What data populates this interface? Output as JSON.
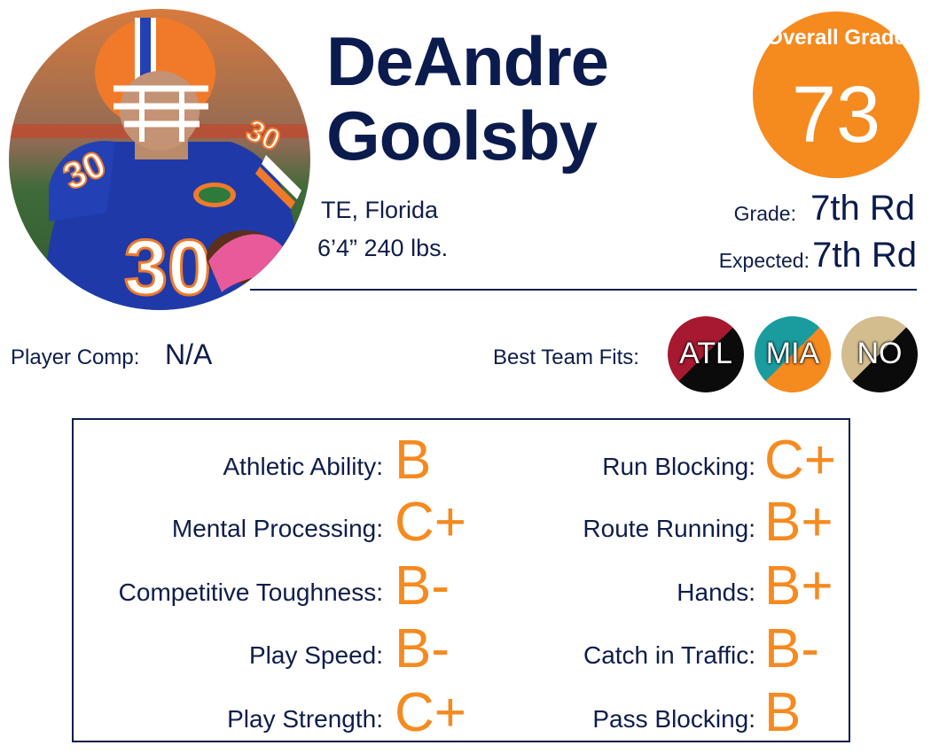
{
  "player": {
    "first_name": "DeAndre",
    "last_name": "Goolsby",
    "position_school": "TE, Florida",
    "height_weight": "6’4” 240 lbs.",
    "jersey_number": "30"
  },
  "overall": {
    "label": "Overall Grade",
    "value": "73"
  },
  "grades": {
    "grade_label": "Grade:",
    "grade_value": "7th Rd",
    "expected_label": "Expected:",
    "expected_value": "7th Rd"
  },
  "player_comp": {
    "label": "Player Comp:",
    "value": "N/A"
  },
  "team_fits": {
    "label": "Best Team Fits:",
    "teams": [
      {
        "abbr": "ATL",
        "color_top": "#a71930",
        "color_bottom": "#0b0b0b"
      },
      {
        "abbr": "MIA",
        "color_top": "#1a9c9f",
        "color_bottom": "#f58a1f"
      },
      {
        "abbr": "NO",
        "color_top": "#d3bc8d",
        "color_bottom": "#0b0b0b"
      }
    ]
  },
  "skills": [
    {
      "label": "Athletic Ability:",
      "grade": "B"
    },
    {
      "label": "Mental Processing:",
      "grade": "C+"
    },
    {
      "label": "Competitive Toughness:",
      "grade": "B-"
    },
    {
      "label": "Play Speed:",
      "grade": "B-"
    },
    {
      "label": "Play Strength:",
      "grade": "C+"
    },
    {
      "label": "Run Blocking:",
      "grade": "C+"
    },
    {
      "label": "Route Running:",
      "grade": "B+"
    },
    {
      "label": "Hands:",
      "grade": "B+"
    },
    {
      "label": "Catch in Traffic:",
      "grade": "B-"
    },
    {
      "label": "Pass Blocking:",
      "grade": "B"
    }
  ],
  "colors": {
    "accent": "#f58a1f",
    "navy": "#0c1b4d"
  }
}
